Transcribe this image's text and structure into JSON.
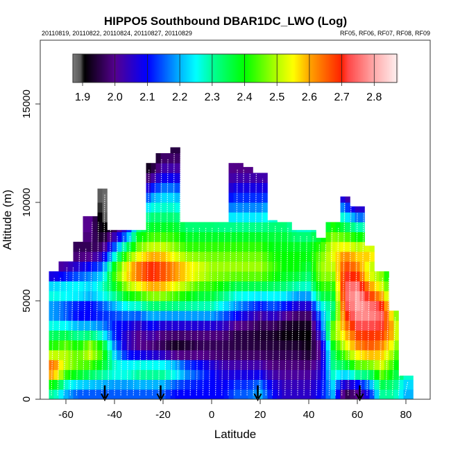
{
  "chart_data": {
    "type": "heatmap",
    "title": "HIPPO5 Southbound DBAR1DC_LWO (Log)",
    "subtitle_left": "20110819, 20110822, 20110824, 20110827, 20110829",
    "subtitle_right": "RF05, RF06, RF07, RF08, RF09",
    "xlabel": "Latitude",
    "ylabel": "Altitude (m)",
    "xlim": [
      -72,
      88
    ],
    "ylim": [
      0,
      18200
    ],
    "xticks": [
      -60,
      -40,
      -20,
      0,
      20,
      40,
      60,
      80
    ],
    "xtick_labels": [
      "-60",
      "-40",
      "-20",
      "0",
      "20",
      "40",
      "60",
      "80"
    ],
    "yticks": [
      0,
      5000,
      10000,
      15000
    ],
    "ytick_labels": [
      "0",
      "5000",
      "10000",
      "15000"
    ],
    "colorbar": {
      "range": [
        1.87,
        2.87
      ],
      "ticks": [
        1.9,
        2.0,
        2.1,
        2.2,
        2.3,
        2.4,
        2.5,
        2.6,
        2.7,
        2.8
      ],
      "tick_labels": [
        "1.9",
        "2.0",
        "2.1",
        "2.2",
        "2.3",
        "2.4",
        "2.5",
        "2.6",
        "2.7",
        "2.8"
      ],
      "stops": [
        [
          1.87,
          "#7a7a7a"
        ],
        [
          1.895,
          "#555555"
        ],
        [
          1.905,
          "#000000"
        ],
        [
          2.0,
          "#55008f"
        ],
        [
          2.1,
          "#0000ff"
        ],
        [
          2.2,
          "#00b4ff"
        ],
        [
          2.25,
          "#00ffff"
        ],
        [
          2.3,
          "#00ff99"
        ],
        [
          2.4,
          "#00ff00"
        ],
        [
          2.5,
          "#b4ff00"
        ],
        [
          2.55,
          "#ffff00"
        ],
        [
          2.6,
          "#ffa500"
        ],
        [
          2.7,
          "#ff2000"
        ],
        [
          2.72,
          "#ff4848"
        ],
        [
          2.8,
          "#ffaaaa"
        ],
        [
          2.87,
          "#ffeeee"
        ]
      ]
    },
    "lat": [
      -65,
      -60,
      -55,
      -50,
      -45,
      -40,
      -35,
      -30,
      -25,
      -20,
      -15,
      -10,
      -5,
      0,
      5,
      10,
      15,
      20,
      25,
      30,
      35,
      40,
      45,
      50,
      55,
      60,
      65,
      70,
      75,
      80
    ],
    "altitude_bins_m": [
      500,
      1500,
      2500,
      3500,
      4500,
      5500,
      6500,
      7500,
      8500,
      9500,
      10500,
      11500,
      12500
    ],
    "column_top_m": [
      6500,
      7000,
      8000,
      9300,
      10700,
      8600,
      8600,
      8600,
      12000,
      12500,
      12800,
      9000,
      9000,
      9000,
      9000,
      12000,
      11800,
      11500,
      9100,
      9000,
      8600,
      8600,
      8200,
      9000,
      10300,
      9800,
      7800,
      6500,
      4500,
      1200
    ],
    "values": [
      [
        2.3,
        2.7,
        2.45,
        2.3,
        2.15,
        2.3,
        2.0,
        2.0,
        1.95,
        1.9,
        1.9,
        1.9,
        1.9
      ],
      [
        2.2,
        2.5,
        2.5,
        2.3,
        2.1,
        2.3,
        2.05,
        1.95,
        2.0,
        1.95,
        1.9,
        1.9,
        1.9
      ],
      [
        2.15,
        2.45,
        2.45,
        2.25,
        2.05,
        2.3,
        2.1,
        1.95,
        2.0,
        2.0,
        1.9,
        1.9,
        1.9
      ],
      [
        2.15,
        2.4,
        2.55,
        2.25,
        2.05,
        2.25,
        2.15,
        1.95,
        2.0,
        2.0,
        1.95,
        1.9,
        1.9
      ],
      [
        2.15,
        2.35,
        2.45,
        2.2,
        2.1,
        2.3,
        2.2,
        2.0,
        1.9,
        1.88,
        1.87,
        1.9,
        1.9
      ],
      [
        2.15,
        2.3,
        2.2,
        2.1,
        2.15,
        2.35,
        2.45,
        2.2,
        1.98,
        1.9,
        1.9,
        1.9,
        1.9
      ],
      [
        2.15,
        2.3,
        2.05,
        2.05,
        2.2,
        2.45,
        2.6,
        2.4,
        2.1,
        2.0,
        1.9,
        1.9,
        1.9
      ],
      [
        2.15,
        2.35,
        2.0,
        2.0,
        2.2,
        2.5,
        2.68,
        2.5,
        2.35,
        2.2,
        1.95,
        1.9,
        1.9
      ],
      [
        2.15,
        2.35,
        1.97,
        2.05,
        2.25,
        2.55,
        2.75,
        2.55,
        2.4,
        2.3,
        2.15,
        1.95,
        1.88
      ],
      [
        2.15,
        2.35,
        1.95,
        2.0,
        2.25,
        2.55,
        2.7,
        2.55,
        2.4,
        2.3,
        2.2,
        2.05,
        1.95
      ],
      [
        2.1,
        2.3,
        1.9,
        2.0,
        2.25,
        2.5,
        2.65,
        2.5,
        2.4,
        2.3,
        2.2,
        2.05,
        1.95
      ],
      [
        2.1,
        2.2,
        1.92,
        2.0,
        2.25,
        2.45,
        2.6,
        2.45,
        2.35,
        2.25,
        2.1,
        2.0,
        1.95
      ],
      [
        2.1,
        2.15,
        1.95,
        2.0,
        2.25,
        2.4,
        2.55,
        2.45,
        2.35,
        2.25,
        2.1,
        2.0,
        2.0
      ],
      [
        2.1,
        2.1,
        1.95,
        2.0,
        2.25,
        2.4,
        2.5,
        2.45,
        2.35,
        2.25,
        2.1,
        2.0,
        2.0
      ],
      [
        2.1,
        2.05,
        1.95,
        2.0,
        2.2,
        2.35,
        2.5,
        2.45,
        2.35,
        2.2,
        2.05,
        2.0,
        2.0
      ],
      [
        2.15,
        2.05,
        1.95,
        1.95,
        2.15,
        2.3,
        2.5,
        2.45,
        2.35,
        2.2,
        2.1,
        2.0,
        1.98
      ],
      [
        2.15,
        2.05,
        1.95,
        1.95,
        2.1,
        2.3,
        2.5,
        2.45,
        2.35,
        2.2,
        2.1,
        2.0,
        1.98
      ],
      [
        2.2,
        2.05,
        1.95,
        1.93,
        2.05,
        2.3,
        2.5,
        2.45,
        2.35,
        2.2,
        2.1,
        2.0,
        1.98
      ],
      [
        2.1,
        2.0,
        1.95,
        1.93,
        2.1,
        2.3,
        2.45,
        2.4,
        2.35,
        2.25,
        2.1,
        2.0,
        2.0
      ],
      [
        2.05,
        2.0,
        1.95,
        1.9,
        2.05,
        2.3,
        2.4,
        2.4,
        2.35,
        2.25,
        2.1,
        2.0,
        2.0
      ],
      [
        2.05,
        2.0,
        1.95,
        1.9,
        2.0,
        2.25,
        2.4,
        2.4,
        2.3,
        2.2,
        2.1,
        2.0,
        2.0
      ],
      [
        2.05,
        2.0,
        1.92,
        1.9,
        2.0,
        2.25,
        2.35,
        2.4,
        2.3,
        2.2,
        2.1,
        2.0,
        2.0
      ],
      [
        2.1,
        2.05,
        2.0,
        2.1,
        2.2,
        2.4,
        2.5,
        2.45,
        2.35,
        2.2,
        2.1,
        2.0,
        2.0
      ],
      [
        2.2,
        2.3,
        2.35,
        2.5,
        2.3,
        2.4,
        2.5,
        2.55,
        2.45,
        2.3,
        2.1,
        2.0,
        2.0
      ],
      [
        1.95,
        2.3,
        2.5,
        2.6,
        2.7,
        2.75,
        2.7,
        2.6,
        2.4,
        2.2,
        2.0,
        1.95,
        1.95
      ],
      [
        2.0,
        2.4,
        2.6,
        2.7,
        2.8,
        2.8,
        2.65,
        2.55,
        2.35,
        2.1,
        1.9,
        1.95,
        1.95
      ],
      [
        2.1,
        2.4,
        2.65,
        2.7,
        2.8,
        2.65,
        2.5,
        2.6,
        2.35,
        2.1,
        2.0,
        2.0,
        2.0
      ],
      [
        2.3,
        2.5,
        2.6,
        2.7,
        2.75,
        2.55,
        2.45,
        2.5,
        2.3,
        2.1,
        2.0,
        2.0,
        2.0
      ],
      [
        2.3,
        2.4,
        2.5,
        2.6,
        2.5,
        2.4,
        2.3,
        2.2,
        2.1,
        2.0,
        2.0,
        2.0,
        2.0
      ],
      [
        2.2,
        2.3,
        2.3,
        2.3,
        2.3,
        2.3,
        2.3,
        2.3,
        2.3,
        2.3,
        2.3,
        2.3,
        2.3
      ]
    ],
    "profile_marker_latitudes": [
      -44,
      -21,
      19,
      61
    ],
    "grid": false
  }
}
